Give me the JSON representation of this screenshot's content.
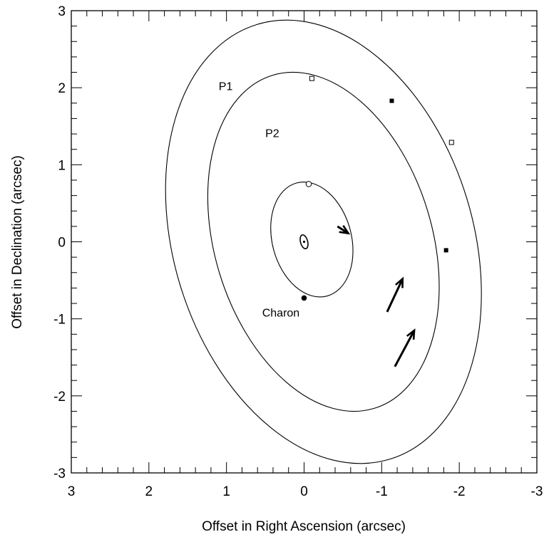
{
  "chart_data": {
    "type": "line",
    "title": "",
    "xlabel": "Offset in Right Ascension (arcsec)",
    "ylabel": "Offset in Declination (arcsec)",
    "xlim": [
      3,
      -3
    ],
    "ylim": [
      -3,
      3
    ],
    "x_reversed": true,
    "grid": false,
    "x_ticks": [
      3,
      2,
      1,
      0,
      -1,
      -2,
      -3
    ],
    "x_tick_labels": [
      "3",
      "2",
      "1",
      "0",
      "-1",
      "-2",
      "-3"
    ],
    "y_ticks": [
      3,
      2,
      1,
      0,
      -1,
      -2,
      -3
    ],
    "y_tick_labels": [
      "3",
      "2",
      "1",
      "0",
      "-1",
      "-2",
      "-3"
    ],
    "center": {
      "x": 0,
      "y": 0
    },
    "orbits": [
      {
        "label": "P1",
        "ellipse": {
          "cx": -0.25,
          "cy": 0,
          "rx": 1.93,
          "ry": 2.95,
          "tilt_deg": -17
        },
        "label_pos": {
          "x": 1.1,
          "y": 1.97
        },
        "positions_filled": [
          {
            "x": -1.83,
            "y": -0.11
          }
        ],
        "positions_open": [
          {
            "x": -1.9,
            "y": 1.29
          }
        ],
        "arrow": {
          "from": {
            "x": -1.17,
            "y": -1.62
          },
          "to": {
            "x": -1.42,
            "y": -1.15
          }
        }
      },
      {
        "label": "P2",
        "ellipse": {
          "cx": -0.25,
          "cy": 0,
          "rx": 1.4,
          "ry": 2.26,
          "tilt_deg": -17
        },
        "label_pos": {
          "x": 0.5,
          "y": 1.36
        },
        "positions_filled": [
          {
            "x": -1.13,
            "y": 1.83
          }
        ],
        "positions_open": [
          {
            "x": -0.1,
            "y": 2.12
          }
        ],
        "arrow": {
          "from": {
            "x": -1.07,
            "y": -0.91
          },
          "to": {
            "x": -1.27,
            "y": -0.48
          }
        }
      },
      {
        "label": "Charon",
        "ellipse": {
          "cx": -0.1,
          "cy": 0.03,
          "rx": 0.51,
          "ry": 0.76,
          "tilt_deg": -15
        },
        "label_pos": {
          "x": 0.54,
          "y": -0.97
        },
        "positions_filled": [
          {
            "x": 0.0,
            "y": -0.73
          }
        ],
        "positions_open": [
          {
            "x": -0.06,
            "y": 0.75
          }
        ],
        "arrow": {
          "from": {
            "x": -0.43,
            "y": 0.2
          },
          "to": {
            "x": -0.57,
            "y": 0.11
          }
        }
      }
    ]
  }
}
